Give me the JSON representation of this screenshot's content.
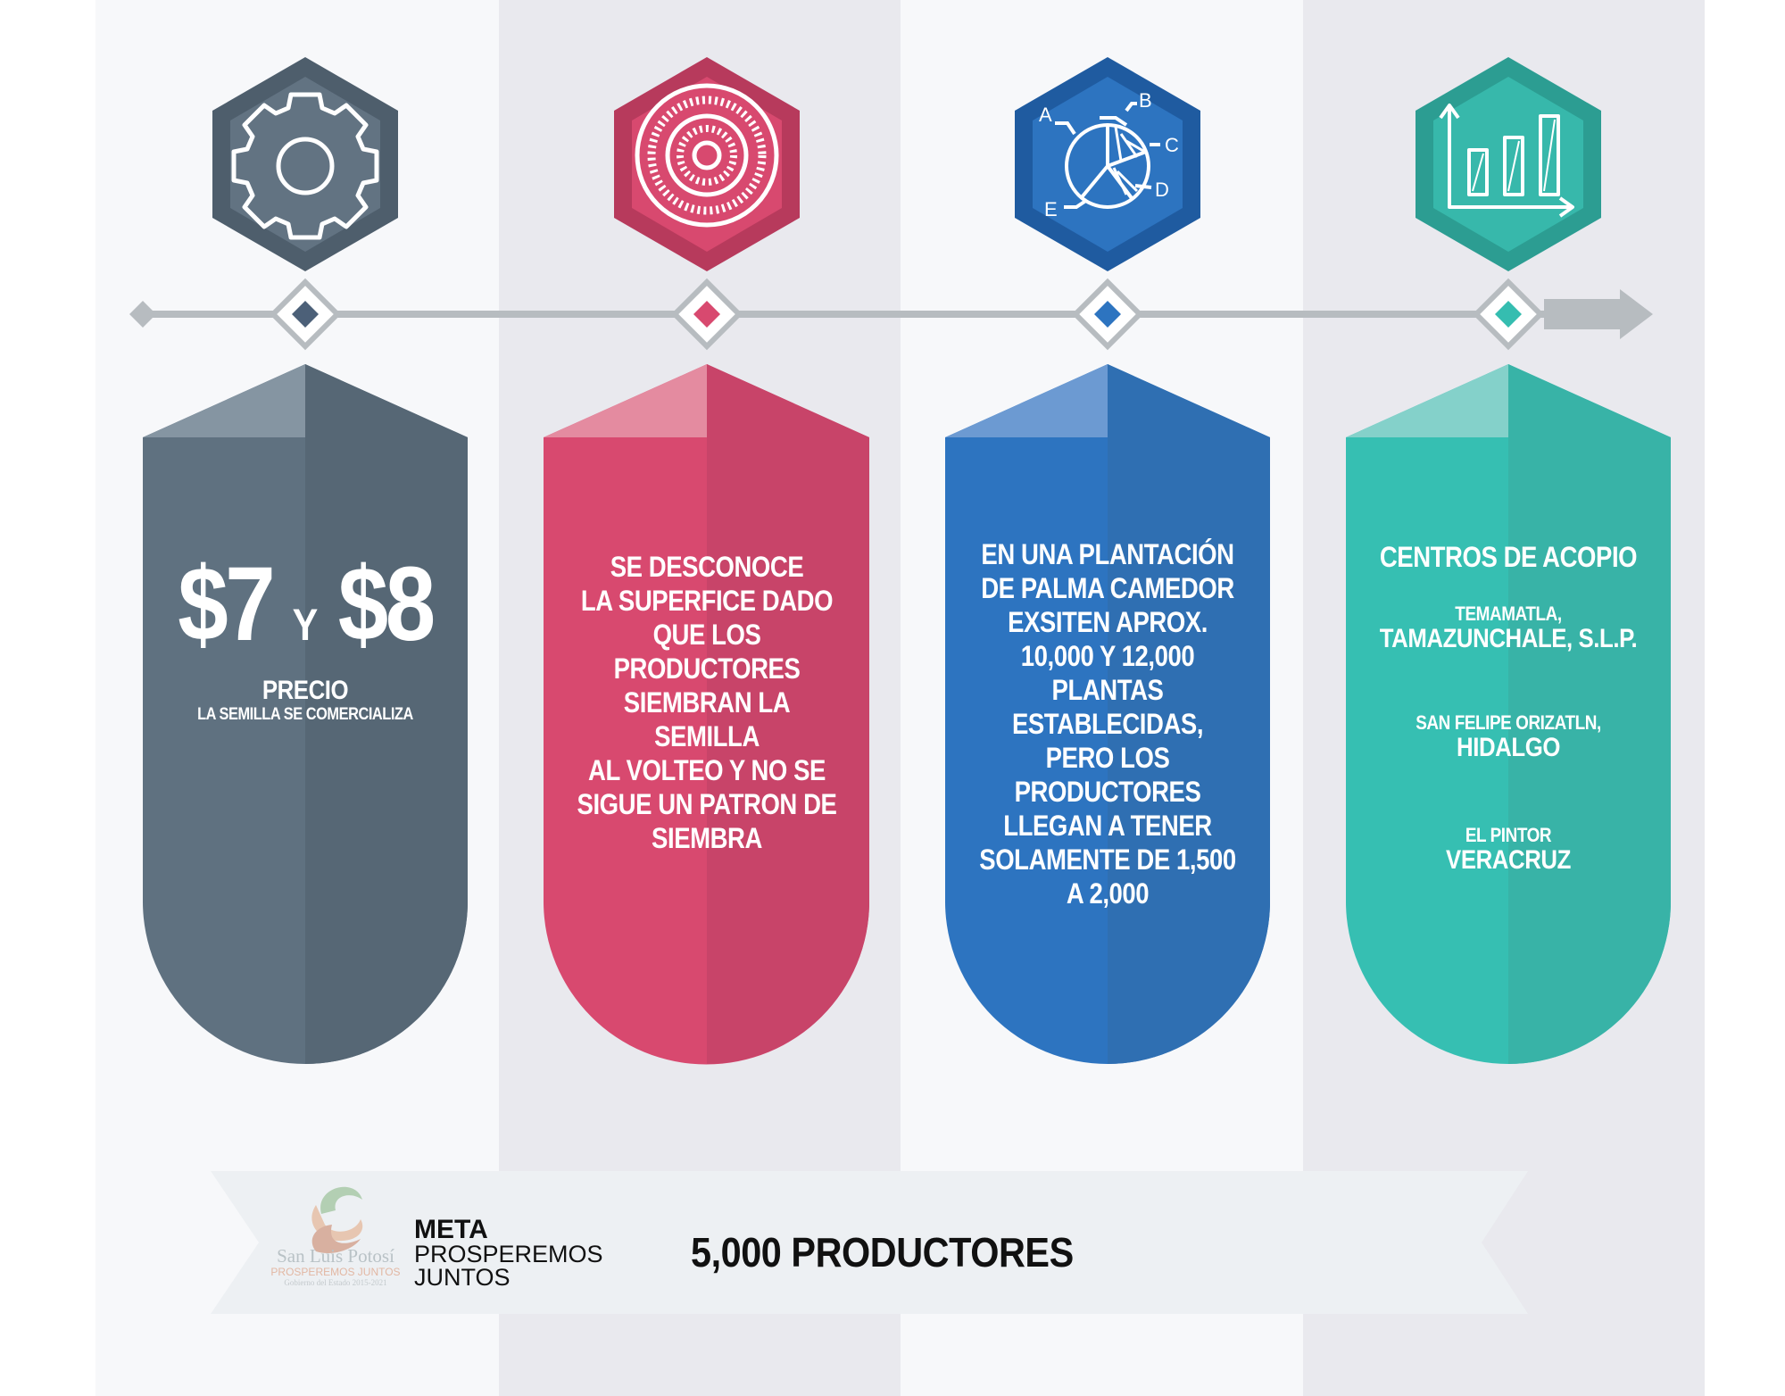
{
  "colors": {
    "slate": "#5f7180",
    "crimson": "#d8496f",
    "blue": "#2d74c0",
    "teal": "#35bdb0",
    "connector": "#b7bcc0"
  },
  "icons": [
    "gear-icon",
    "target-icon",
    "pie-chart-icon",
    "bar-chart-icon"
  ],
  "pie_labels": [
    "A",
    "B",
    "C",
    "D",
    "E"
  ],
  "panel1": {
    "price_a": "$7",
    "price_sep": "Y",
    "price_b": "$8",
    "title": "PRECIO",
    "subtitle": "LA SEMILLA SE COMERCIALIZA"
  },
  "panel2": {
    "lines": [
      "SE DESCONOCE",
      "LA SUPERFICE DADO",
      "QUE LOS PRODUCTORES",
      "SIEMBRAN LA SEMILLA",
      "AL VOLTEO Y NO SE",
      "SIGUE UN PATRON DE",
      "SIEMBRA"
    ]
  },
  "panel3": {
    "lines": [
      "EN UNA PLANTACIÓN",
      "DE PALMA CAMEDOR",
      "EXSITEN APROX.",
      "10,000 Y 12,000",
      "PLANTAS ESTABLECIDAS,",
      "PERO LOS PRODUCTORES",
      "LLEGAN A TENER",
      "SOLAMENTE DE 1,500",
      "A 2,000"
    ]
  },
  "panel4": {
    "title": "CENTROS DE ACOPIO",
    "places": [
      {
        "town": "TEMAMATLA,",
        "region": "TAMAZUNCHALE, S.L.P."
      },
      {
        "town": "SAN FELIPE ORIZATLN,",
        "region": "HIDALGO"
      },
      {
        "town": "EL PINTOR",
        "region": "VERACRUZ"
      }
    ]
  },
  "footer": {
    "logo_text": "San Luis Potosí",
    "logo_tagline": "PROSPEREMOS JUNTOS",
    "logo_subtitle": "Gobierno del Estado 2015-2021",
    "meta_title": "META",
    "meta_line1": "PROSPEREMOS",
    "meta_line2": "JUNTOS",
    "goal": "5,000 PRODUCTORES"
  }
}
